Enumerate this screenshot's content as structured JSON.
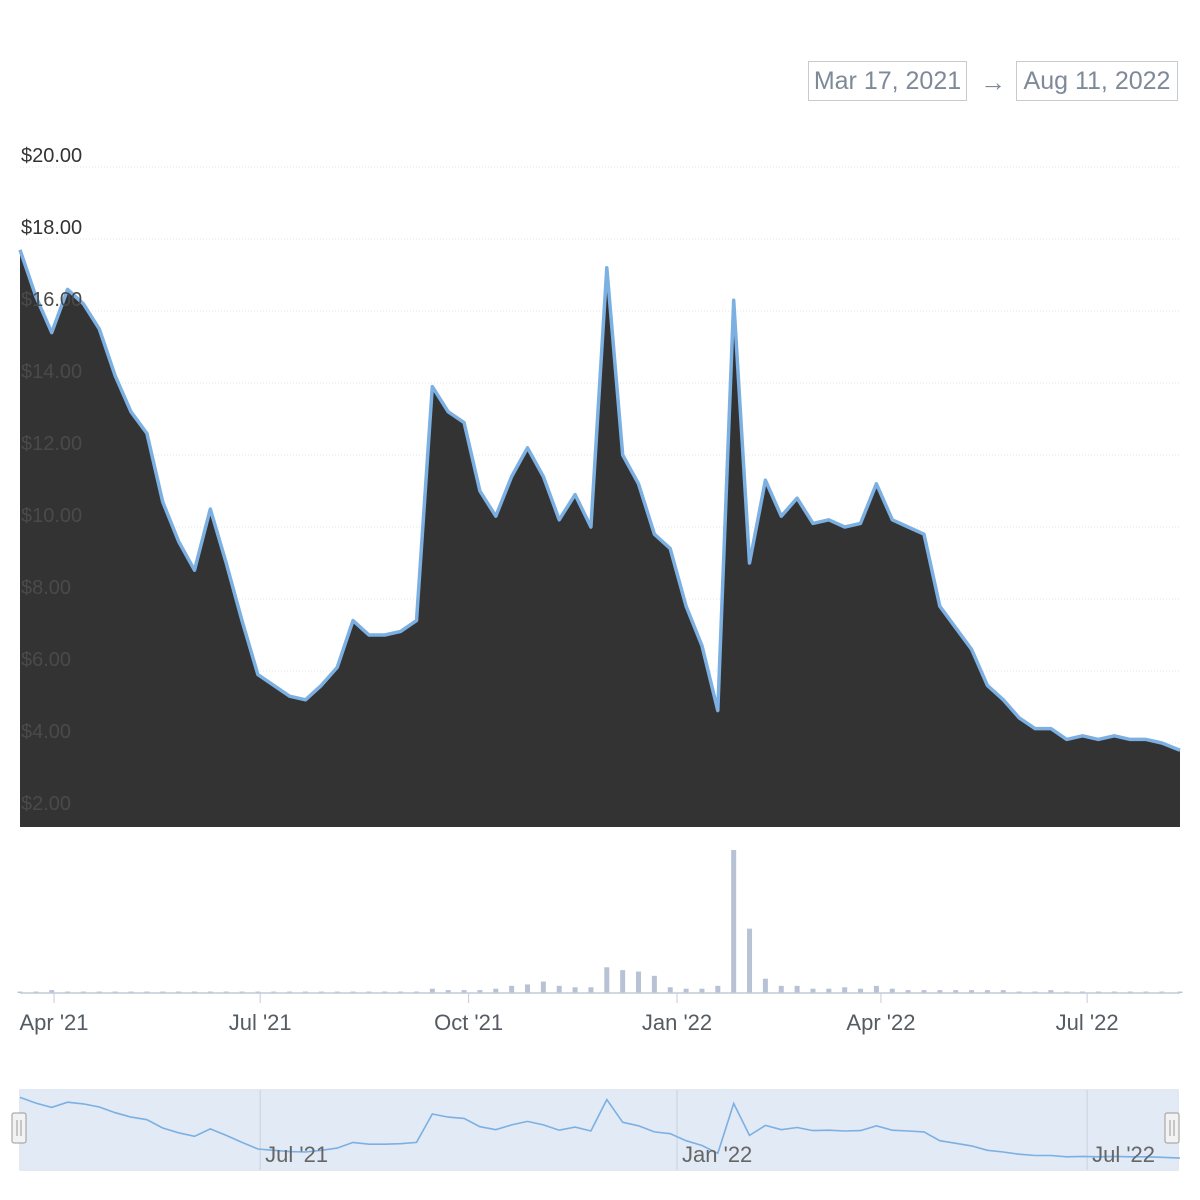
{
  "range_selector": {
    "from": "Mar 17, 2021",
    "arrow": "→",
    "to": "Aug 11, 2022"
  },
  "colors": {
    "line": "#7cb0e2",
    "area": "#333333",
    "volume": "#b7c2d4",
    "grid": "#e6e6e6",
    "navigator_fill": "#dfe8f4"
  },
  "chart_data": {
    "type": "area",
    "y_unit": "USD",
    "ylim": [
      2,
      20
    ],
    "y_ticks": [
      "$2.00",
      "$4.00",
      "$6.00",
      "$8.00",
      "$10.00",
      "$12.00",
      "$14.00",
      "$16.00",
      "$18.00",
      "$20.00"
    ],
    "x_ticks": [
      "Apr '21",
      "Jul '21",
      "Oct '21",
      "Jan '22",
      "Apr '22",
      "Jul '22"
    ],
    "grid": true,
    "legend": "none",
    "x": [
      "2021-03-17",
      "2021-03-24",
      "2021-03-31",
      "2021-04-07",
      "2021-04-14",
      "2021-04-21",
      "2021-04-28",
      "2021-05-05",
      "2021-05-12",
      "2021-05-19",
      "2021-05-26",
      "2021-06-02",
      "2021-06-09",
      "2021-06-16",
      "2021-06-23",
      "2021-06-30",
      "2021-07-07",
      "2021-07-14",
      "2021-07-21",
      "2021-07-28",
      "2021-08-04",
      "2021-08-11",
      "2021-08-18",
      "2021-08-25",
      "2021-09-01",
      "2021-09-08",
      "2021-09-15",
      "2021-09-22",
      "2021-09-29",
      "2021-10-06",
      "2021-10-13",
      "2021-10-20",
      "2021-10-27",
      "2021-11-03",
      "2021-11-10",
      "2021-11-17",
      "2021-11-24",
      "2021-12-01",
      "2021-12-08",
      "2021-12-15",
      "2021-12-22",
      "2021-12-29",
      "2022-01-05",
      "2022-01-12",
      "2022-01-19",
      "2022-01-26",
      "2022-02-02",
      "2022-02-09",
      "2022-02-16",
      "2022-02-23",
      "2022-03-02",
      "2022-03-09",
      "2022-03-16",
      "2022-03-23",
      "2022-03-30",
      "2022-04-06",
      "2022-04-13",
      "2022-04-20",
      "2022-04-27",
      "2022-05-04",
      "2022-05-11",
      "2022-05-18",
      "2022-05-25",
      "2022-06-01",
      "2022-06-08",
      "2022-06-15",
      "2022-06-22",
      "2022-06-29",
      "2022-07-06",
      "2022-07-13",
      "2022-07-20",
      "2022-07-27",
      "2022-08-03",
      "2022-08-11"
    ],
    "series": [
      {
        "name": "",
        "kind": "price",
        "values": [
          17.7,
          16.4,
          15.4,
          16.6,
          16.2,
          15.5,
          14.2,
          13.2,
          12.6,
          10.7,
          9.6,
          8.8,
          10.5,
          9.0,
          7.4,
          5.9,
          5.6,
          5.3,
          5.2,
          5.6,
          6.1,
          7.4,
          7.0,
          7.0,
          7.1,
          7.4,
          13.9,
          13.2,
          12.9,
          11.0,
          10.3,
          11.4,
          12.2,
          11.4,
          10.2,
          10.9,
          10.0,
          17.2,
          12.0,
          11.2,
          9.8,
          9.4,
          7.8,
          6.7,
          4.9,
          16.3,
          9.0,
          11.3,
          10.3,
          10.8,
          10.1,
          10.2,
          10.0,
          10.1,
          11.2,
          10.2,
          10.0,
          9.8,
          7.8,
          7.2,
          6.6,
          5.6,
          5.2,
          4.7,
          4.4,
          4.4,
          4.1,
          4.2,
          4.1,
          4.2,
          4.1,
          4.1,
          4.0,
          3.8
        ]
      },
      {
        "name": "",
        "kind": "volume",
        "values": [
          0.01,
          0.01,
          0.02,
          0.01,
          0.01,
          0.01,
          0.01,
          0.01,
          0.01,
          0.01,
          0.01,
          0.01,
          0.01,
          0.01,
          0.01,
          0.01,
          0.01,
          0.01,
          0.01,
          0.01,
          0.01,
          0.01,
          0.01,
          0.01,
          0.01,
          0.01,
          0.03,
          0.02,
          0.02,
          0.02,
          0.03,
          0.05,
          0.06,
          0.08,
          0.05,
          0.04,
          0.04,
          0.18,
          0.16,
          0.15,
          0.12,
          0.04,
          0.03,
          0.03,
          0.05,
          1.0,
          0.45,
          0.1,
          0.05,
          0.05,
          0.03,
          0.03,
          0.04,
          0.03,
          0.05,
          0.03,
          0.02,
          0.02,
          0.02,
          0.02,
          0.02,
          0.02,
          0.02,
          0.01,
          0.01,
          0.02,
          0.01,
          0.01,
          0.01,
          0.01,
          0.01,
          0.01,
          0.01,
          0.01
        ]
      }
    ]
  },
  "navigator": {
    "x_ticks": [
      "Jul '21",
      "Jan '22",
      "Jul '22"
    ]
  }
}
